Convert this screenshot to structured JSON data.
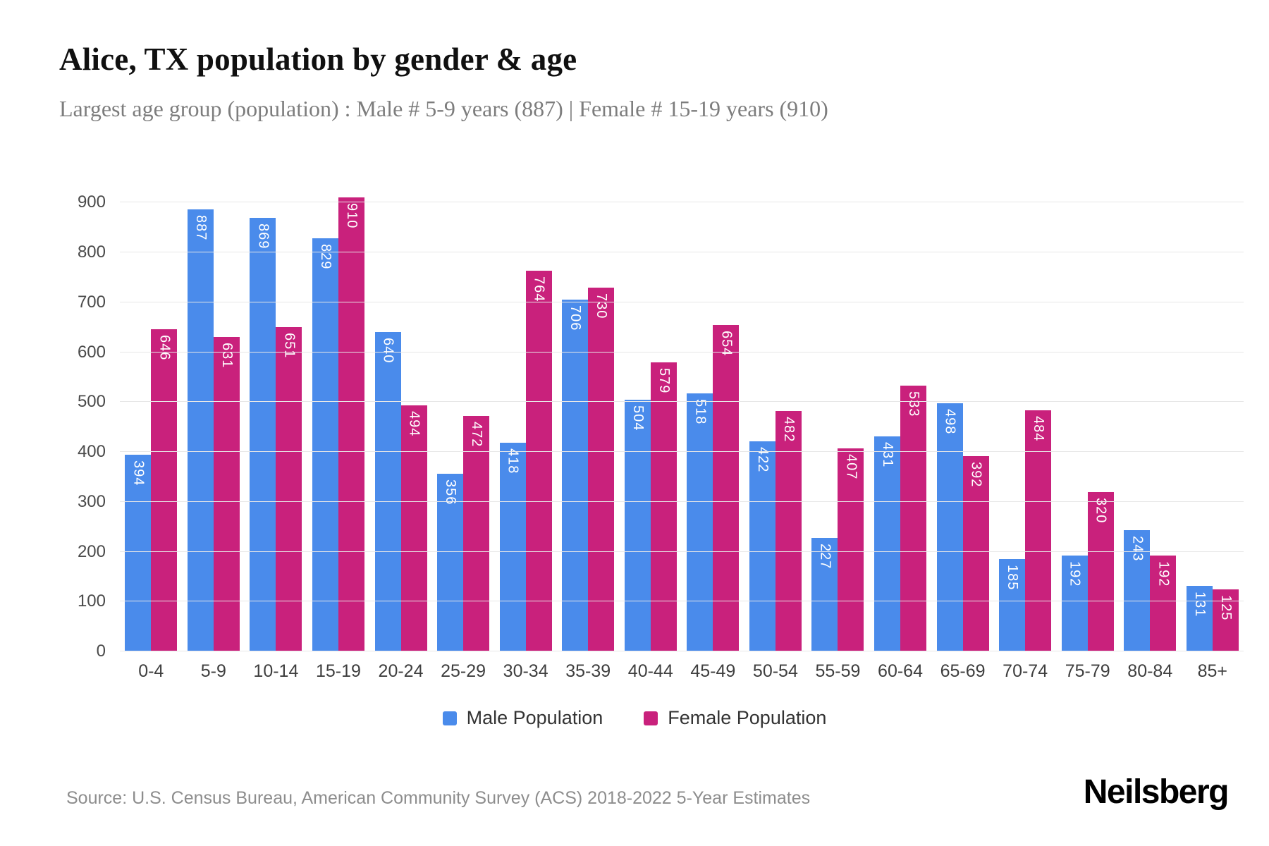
{
  "title": "Alice, TX population by gender & age",
  "subtitle": "Largest age group (population) : Male # 5-9 years (887) | Female # 15-19 years (910)",
  "source": "Source: U.S. Census Bureau, American Community Survey (ACS) 2018-2022 5-Year Estimates",
  "logo": "Neilsberg",
  "colors": {
    "male": "#4a8beb",
    "female": "#c9217c"
  },
  "legend": [
    {
      "label": "Male Population",
      "color": "#4a8beb"
    },
    {
      "label": "Female Population",
      "color": "#c9217c"
    }
  ],
  "chart_data": {
    "type": "bar",
    "title": "Alice, TX population by gender & age",
    "subtitle": "Largest age group (population) : Male # 5-9 years (887) | Female # 15-19 years (910)",
    "categories": [
      "0-4",
      "5-9",
      "10-14",
      "15-19",
      "20-24",
      "25-29",
      "30-34",
      "35-39",
      "40-44",
      "45-49",
      "50-54",
      "55-59",
      "60-64",
      "65-69",
      "70-74",
      "75-79",
      "80-84",
      "85+"
    ],
    "series": [
      {
        "name": "Male Population",
        "color": "#4a8beb",
        "values": [
          394,
          887,
          869,
          829,
          640,
          356,
          418,
          706,
          504,
          518,
          422,
          227,
          431,
          498,
          185,
          192,
          243,
          131
        ]
      },
      {
        "name": "Female Population",
        "color": "#c9217c",
        "values": [
          646,
          631,
          651,
          910,
          494,
          472,
          764,
          730,
          579,
          654,
          482,
          407,
          533,
          392,
          484,
          320,
          192,
          125
        ]
      }
    ],
    "xlabel": "",
    "ylabel": "",
    "ylim": [
      0,
      950
    ],
    "yticks": [
      0,
      100,
      200,
      300,
      400,
      500,
      600,
      700,
      800,
      900
    ],
    "grid": true,
    "legend_position": "bottom"
  }
}
